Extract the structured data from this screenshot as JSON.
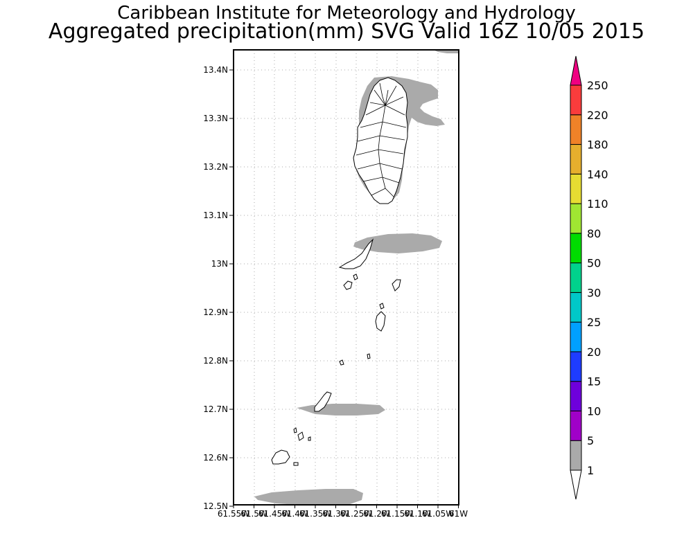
{
  "header": {
    "title_line1": "Caribbean Institute for Meteorology and Hydrology",
    "title_line2": "Aggregated precipitation(mm) SVG Valid 16Z 10/05 2015"
  },
  "map": {
    "lat_ticks": [
      "13.4N",
      "13.3N",
      "13.2N",
      "13.1N",
      "13N",
      "12.9N",
      "12.8N",
      "12.7N",
      "12.6N",
      "12.5N"
    ],
    "lon_ticks": [
      "61.55W",
      "61.5W",
      "61.45W",
      "61.4W",
      "61.35W",
      "61.3W",
      "61.25W",
      "61.2W",
      "61.15W",
      "61.1W",
      "61.05W",
      "61W"
    ],
    "lat_range": [
      12.5,
      13.44
    ],
    "lon_range": [
      -61.55,
      -61.0
    ],
    "grid": true
  },
  "colorbar": {
    "levels": [
      "1",
      "5",
      "10",
      "15",
      "20",
      "25",
      "30",
      "50",
      "80",
      "110",
      "140",
      "180",
      "220",
      "250"
    ],
    "colors": [
      "#aaaaaa",
      "#a000c8",
      "#6e00dc",
      "#1e3cff",
      "#00a0ff",
      "#00c8c8",
      "#00d28c",
      "#00dc00",
      "#a0e632",
      "#e6dc32",
      "#e6af2d",
      "#f08228",
      "#fa3c3c",
      "#f00082"
    ]
  }
}
